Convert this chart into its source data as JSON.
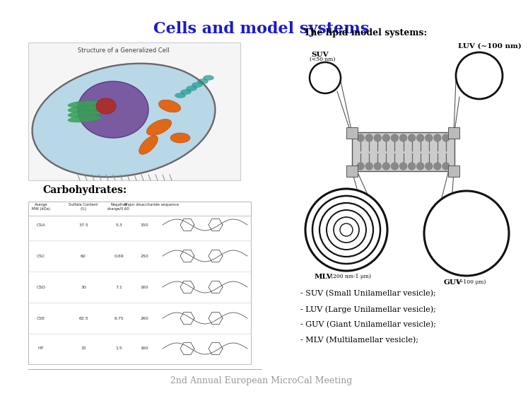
{
  "title": "Cells and model systems",
  "title_color": "#1a1acd",
  "title_fontsize": 16,
  "lipid_title": "The lipid model systems:",
  "lipid_title_fontsize": 9,
  "carbohydrates_label": "Carbohydrates:",
  "carbohydrates_fontsize": 10,
  "footer": "2nd Annual European MicroCal Meeting",
  "footer_color": "#999999",
  "footer_fontsize": 9,
  "bg_color": "#ffffff",
  "suv_label": "SUV",
  "suv_sublabel": "(<50 nm)",
  "luv_label": "LUV (~100 nm)",
  "luv_sublabel": "(~100 nm)",
  "mlv_label": "MLV",
  "mlv_sublabel": "(200 nm-1 μm)",
  "guv_label": "GUV",
  "guv_sublabel": "(~100 μm)",
  "bullet_items": [
    "- SUV (Small Unilamellar vesicle);",
    "- LUV (Large Unilamellar vesicle);",
    "- GUV (Giant Unilamellar vesicle);",
    "- MLV (Multilamellar vesicle);"
  ],
  "bullet_fontsize": 8,
  "table_rows": [
    [
      "CSA",
      "37.5",
      "5.3",
      "150"
    ],
    [
      "CSC",
      "60",
      "0.69",
      "250"
    ],
    [
      "CSD",
      "30",
      "7.1",
      "160"
    ],
    [
      "CSE",
      "62.5",
      "6.75",
      "260"
    ],
    [
      "HT",
      "15",
      "1.5",
      "160"
    ]
  ],
  "cell_image_label": "Structure of a Generalized Cell"
}
